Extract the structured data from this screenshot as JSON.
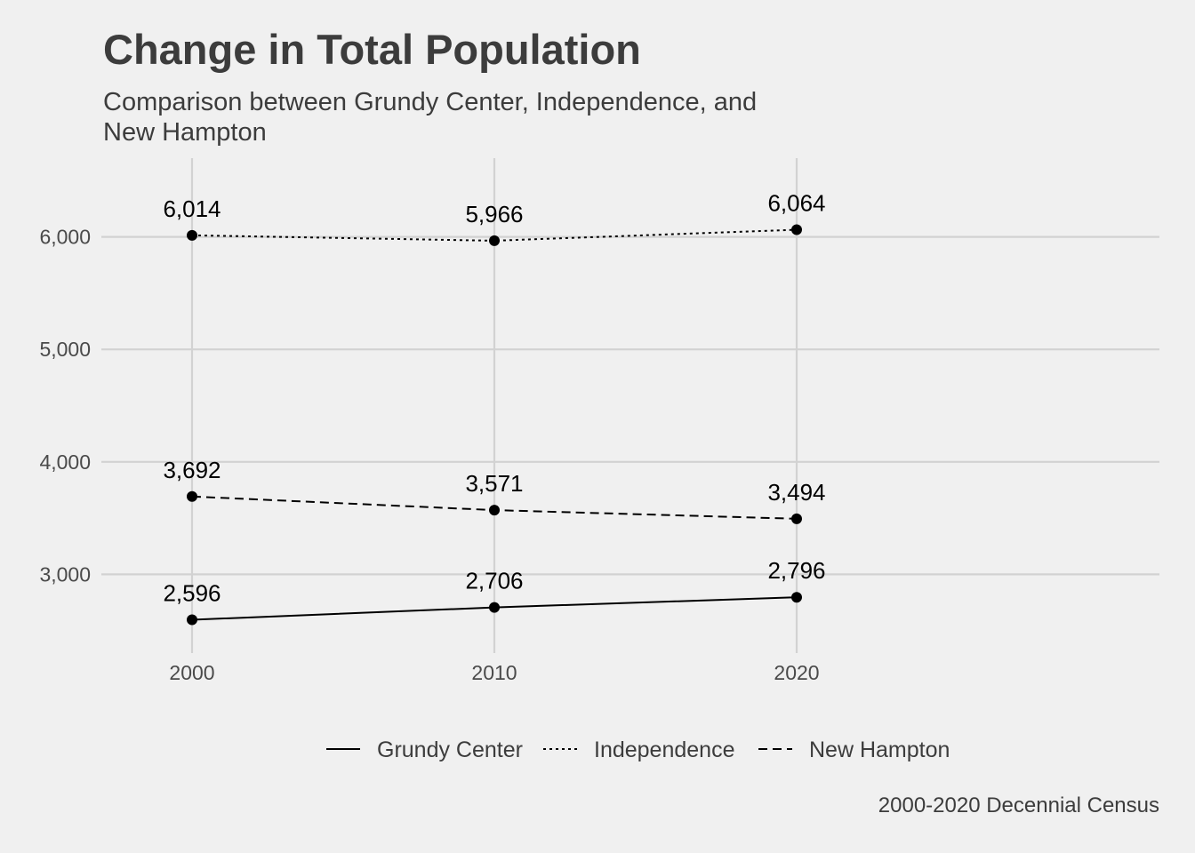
{
  "chart_data": {
    "type": "line",
    "title": "Change in Total Population",
    "subtitle": "Comparison between Grundy Center, Independence, and New Hampton",
    "caption": "2000-2020 Decennial Census",
    "xlabel": "",
    "ylabel": "",
    "x": [
      2000,
      2010,
      2020
    ],
    "x_tick_labels": [
      "2000",
      "2010",
      "2020"
    ],
    "y_ticks": [
      3000,
      4000,
      5000,
      6000
    ],
    "y_tick_labels": [
      "3,000",
      "4,000",
      "5,000",
      "6,000"
    ],
    "xlim": [
      1997,
      2032
    ],
    "ylim": [
      2300,
      6700
    ],
    "grid": true,
    "legend_position": "bottom",
    "series": [
      {
        "name": "Grundy Center",
        "values": [
          2596,
          2706,
          2796
        ],
        "labels": [
          "2,596",
          "2,706",
          "2,796"
        ],
        "linetype": "solid"
      },
      {
        "name": "Independence",
        "values": [
          6014,
          5966,
          6064
        ],
        "labels": [
          "6,014",
          "5,966",
          "6,064"
        ],
        "linetype": "dotted"
      },
      {
        "name": "New Hampton",
        "values": [
          3692,
          3571,
          3494
        ],
        "labels": [
          "3,692",
          "3,571",
          "3,494"
        ],
        "linetype": "dashed"
      }
    ],
    "colors": {
      "background": "#f0f0f0",
      "grid": "#d2d2d2",
      "line": "#000000",
      "text": "#3c3c3c"
    }
  }
}
